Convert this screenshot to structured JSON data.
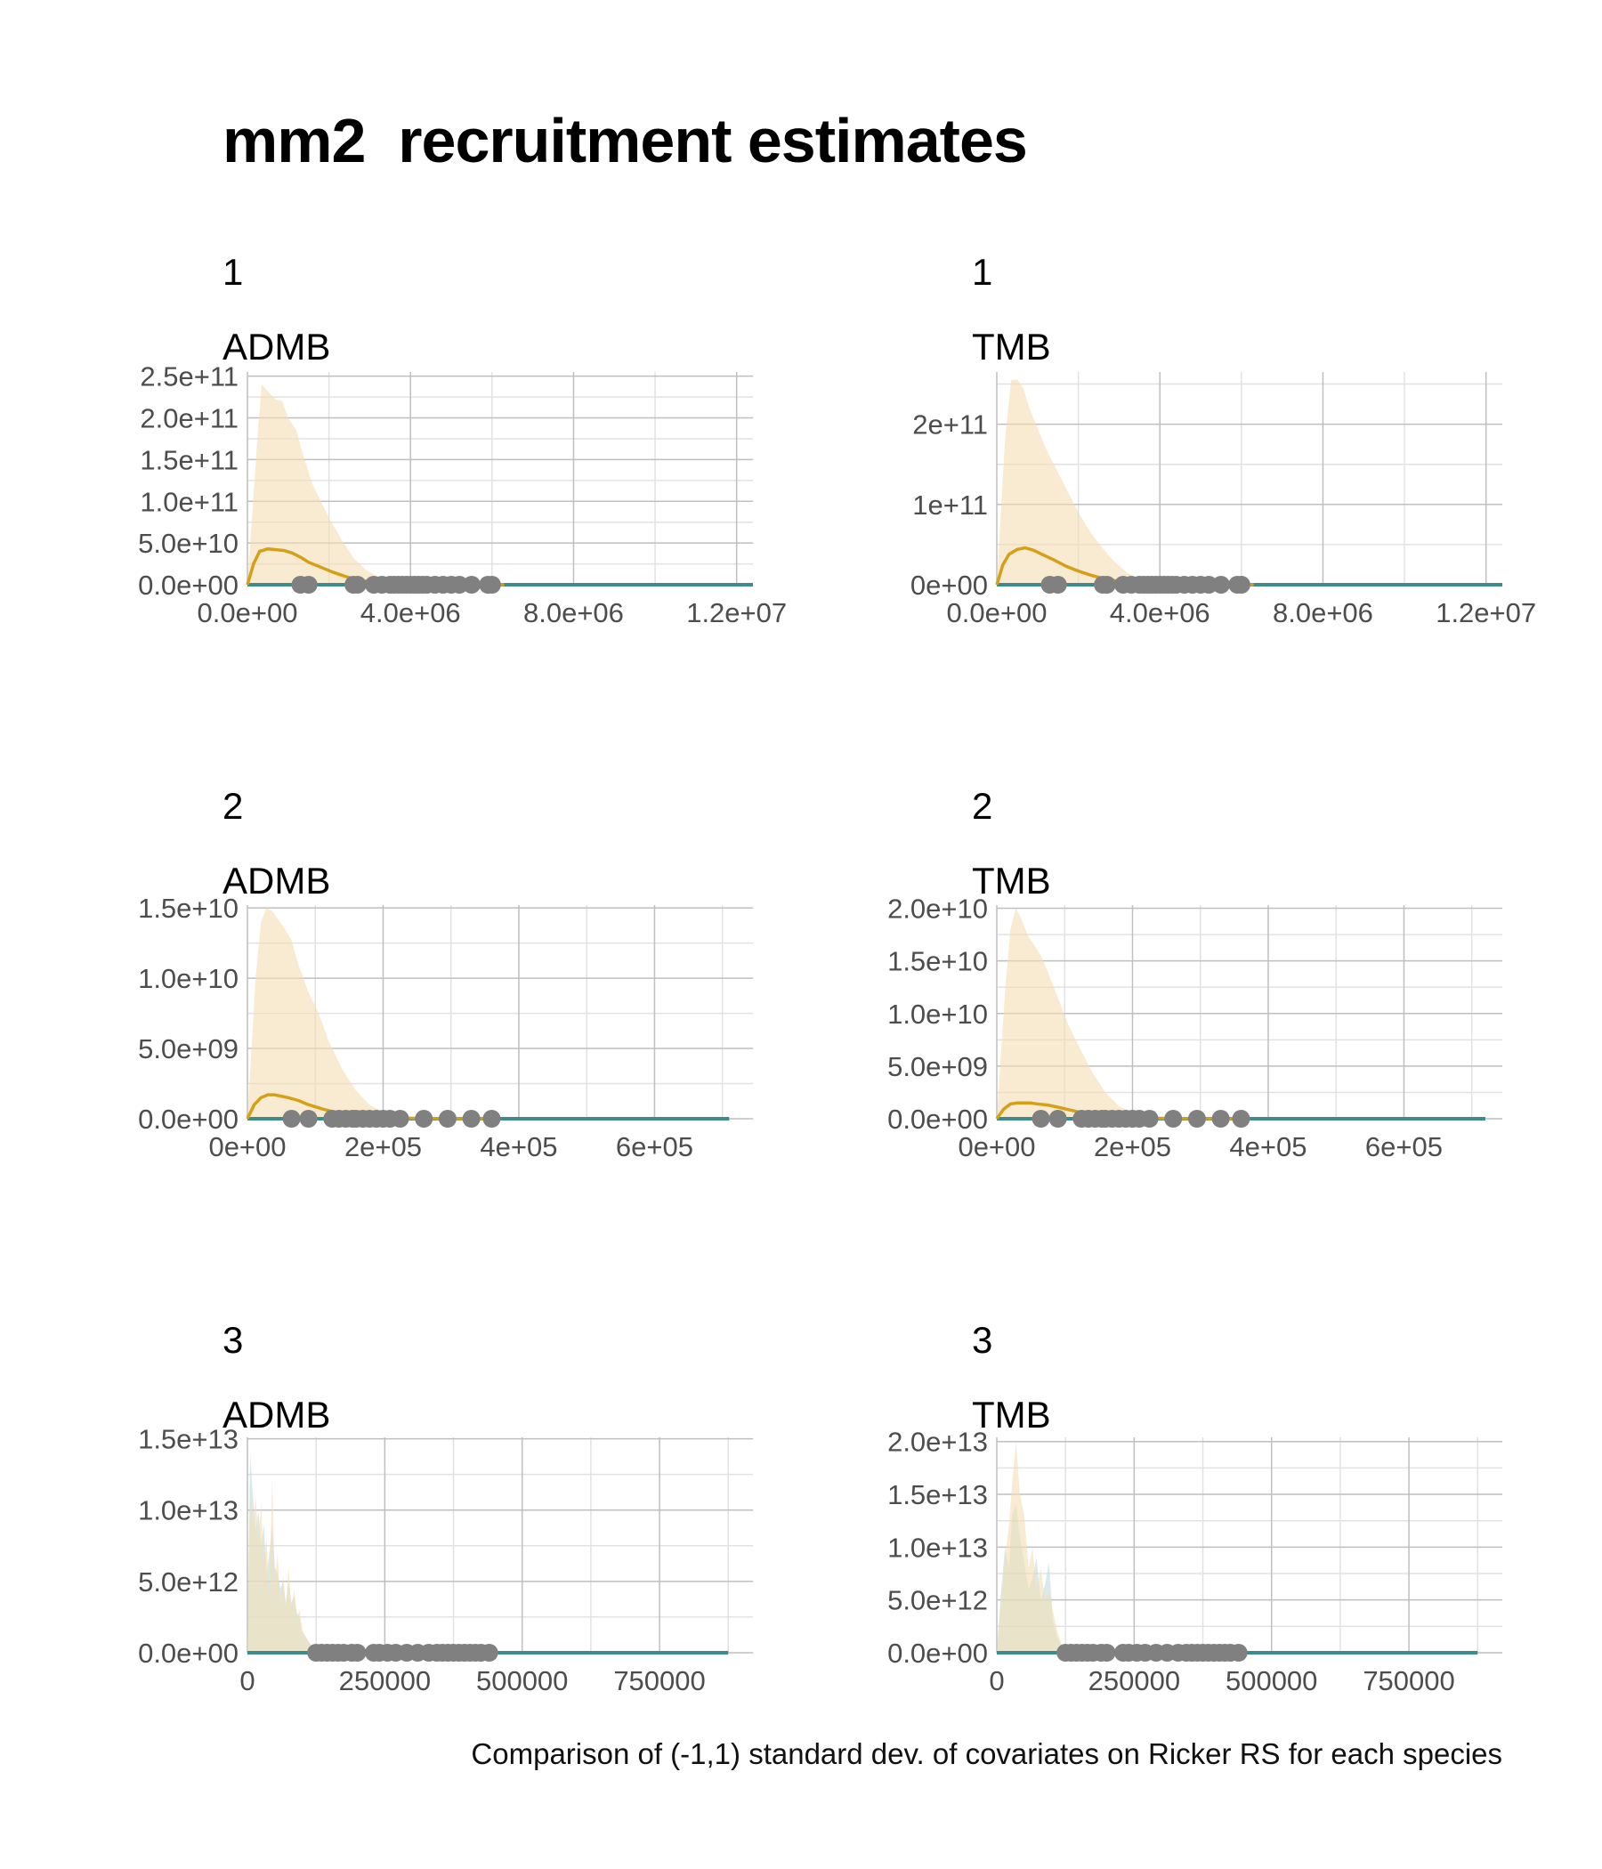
{
  "title": "mm2  recruitment estimates",
  "caption": "Comparison of (-1,1) standard dev. of covariates on Ricker RS for each species",
  "colors": {
    "orange_line": "#D4A017",
    "orange_fill": "#F5DEB3",
    "blue_fill": "#B8D8E0",
    "teal_line": "#3D8C8C",
    "points": "#808080",
    "grid_major": "#bfbfbf",
    "grid_minor": "#e2e2e2"
  },
  "chart_data": [
    {
      "type": "area",
      "species": "1",
      "model": "ADMB",
      "x_ticks": [
        "0.0e+00",
        "4.0e+06",
        "8.0e+06",
        "1.2e+07"
      ],
      "x_tick_values": [
        0,
        4000000,
        8000000,
        12000000
      ],
      "y_ticks": [
        "0.0e+00",
        "5.0e+10",
        "1.0e+11",
        "1.5e+11",
        "2.0e+11",
        "2.5e+11"
      ],
      "y_tick_values": [
        0,
        50000000000,
        100000000000,
        150000000000,
        200000000000,
        250000000000
      ],
      "xlim": [
        0,
        12400000
      ],
      "ylim": [
        0,
        255000000000
      ],
      "upper_band": {
        "x": [
          0,
          250000,
          350000,
          500000,
          700000,
          850000,
          1000000,
          1200000,
          1400000,
          1600000,
          1800000,
          2000000,
          2300000,
          2600000,
          2900000,
          3200000,
          3500000,
          3800000,
          4500000,
          6300000
        ],
        "y": [
          0,
          180000000000,
          240000000000,
          232000000000,
          222000000000,
          220000000000,
          200000000000,
          185000000000,
          150000000000,
          120000000000,
          100000000000,
          80000000000,
          55000000000,
          32000000000,
          18000000000,
          10000000000,
          5000000000,
          2000000000,
          500000000,
          0
        ]
      },
      "lower_band": null,
      "line": {
        "x": [
          0,
          150000,
          300000,
          500000,
          700000,
          900000,
          1100000,
          1300000,
          1500000,
          1800000,
          2100000,
          2400000,
          2700000,
          3000000,
          3400000,
          3800000,
          4500000,
          6300000
        ],
        "y": [
          0,
          25000000000,
          40000000000,
          43000000000,
          42000000000,
          41000000000,
          38000000000,
          33000000000,
          27000000000,
          21000000000,
          15000000000,
          10000000000,
          6000000000,
          3500000000,
          1500000000,
          500000000,
          100000000,
          0
        ]
      },
      "baseline_end": 12400000,
      "points_x": [
        1300000,
        1500000,
        2600000,
        2700000,
        3100000,
        3300000,
        3500000,
        3600000,
        3700000,
        3800000,
        3900000,
        4000000,
        4100000,
        4200000,
        4300000,
        4400000,
        4600000,
        4800000,
        5000000,
        5200000,
        5500000,
        5900000,
        6000000
      ]
    },
    {
      "type": "area",
      "species": "1",
      "model": "TMB",
      "x_ticks": [
        "0.0e+00",
        "4.0e+06",
        "8.0e+06",
        "1.2e+07"
      ],
      "x_tick_values": [
        0,
        4000000,
        8000000,
        12000000
      ],
      "y_ticks": [
        "0e+00",
        "1e+11",
        "2e+11"
      ],
      "y_tick_values": [
        0,
        100000000000,
        200000000000
      ],
      "xlim": [
        0,
        12400000
      ],
      "ylim": [
        0,
        265000000000
      ],
      "upper_band": {
        "x": [
          0,
          200000,
          350000,
          500000,
          650000,
          800000,
          1000000,
          1200000,
          1400000,
          1700000,
          2000000,
          2300000,
          2600000,
          2900000,
          3200000,
          3500000,
          3900000,
          4500000,
          6300000
        ],
        "y": [
          0,
          180000000000,
          255000000000,
          256000000000,
          245000000000,
          220000000000,
          195000000000,
          170000000000,
          150000000000,
          120000000000,
          90000000000,
          65000000000,
          45000000000,
          28000000000,
          15000000000,
          7000000000,
          2000000000,
          500000000,
          0
        ]
      },
      "lower_band": null,
      "line": {
        "x": [
          0,
          150000,
          300000,
          500000,
          700000,
          900000,
          1100000,
          1400000,
          1700000,
          2000000,
          2300000,
          2600000,
          2900000,
          3200000,
          3600000,
          4000000,
          4600000,
          6300000
        ],
        "y": [
          0,
          25000000000,
          38000000000,
          44000000000,
          46000000000,
          43000000000,
          38000000000,
          31000000000,
          23000000000,
          17000000000,
          12000000000,
          8000000000,
          5000000000,
          3000000000,
          1500000000,
          500000000,
          100000000,
          0
        ]
      },
      "baseline_end": 12400000,
      "points_x": [
        1300000,
        1500000,
        2600000,
        2700000,
        3100000,
        3300000,
        3500000,
        3600000,
        3700000,
        3800000,
        3900000,
        4000000,
        4100000,
        4200000,
        4300000,
        4400000,
        4600000,
        4800000,
        5000000,
        5200000,
        5500000,
        5900000,
        6000000
      ]
    },
    {
      "type": "area",
      "species": "2",
      "model": "ADMB",
      "x_ticks": [
        "0e+00",
        "2e+05",
        "4e+05",
        "6e+05"
      ],
      "x_tick_values": [
        0,
        200000,
        400000,
        600000
      ],
      "y_ticks": [
        "0.0e+00",
        "5.0e+09",
        "1.0e+10",
        "1.5e+10"
      ],
      "y_tick_values": [
        0,
        5000000000,
        10000000000,
        15000000000
      ],
      "xlim": [
        0,
        745000
      ],
      "ylim": [
        0,
        15200000000
      ],
      "upper_band": {
        "x": [
          0,
          12000,
          20000,
          28000,
          36000,
          45000,
          55000,
          65000,
          75000,
          90000,
          105000,
          120000,
          140000,
          160000,
          180000,
          200000,
          230000,
          260000,
          360000
        ],
        "y": [
          0,
          10000000000,
          14000000000,
          15000000000,
          14800000000,
          14200000000,
          13500000000,
          12700000000,
          11000000000,
          9000000000,
          7500000000,
          5500000000,
          3500000000,
          2000000000,
          1000000000,
          500000000,
          200000000,
          50000000,
          0
        ]
      },
      "lower_band": null,
      "line": {
        "x": [
          0,
          10000,
          20000,
          30000,
          40000,
          50000,
          60000,
          75000,
          90000,
          110000,
          130000,
          150000,
          180000,
          220000,
          260000,
          360000
        ],
        "y": [
          0,
          1000000000,
          1500000000,
          1700000000,
          1700000000,
          1600000000,
          1500000000,
          1300000000,
          1000000000,
          700000000,
          450000000,
          250000000,
          120000000,
          50000000,
          20000000,
          0
        ]
      },
      "baseline_end": 710000,
      "points_x": [
        65000,
        90000,
        125000,
        135000,
        145000,
        155000,
        160000,
        170000,
        180000,
        190000,
        200000,
        210000,
        225000,
        260000,
        295000,
        330000,
        360000
      ]
    },
    {
      "type": "area",
      "species": "2",
      "model": "TMB",
      "x_ticks": [
        "0e+00",
        "2e+05",
        "4e+05",
        "6e+05"
      ],
      "x_tick_values": [
        0,
        200000,
        400000,
        600000
      ],
      "y_ticks": [
        "0.0e+00",
        "5.0e+09",
        "1.0e+10",
        "1.5e+10",
        "2.0e+10"
      ],
      "y_tick_values": [
        0,
        5000000000,
        10000000000,
        15000000000,
        20000000000
      ],
      "xlim": [
        0,
        745000
      ],
      "ylim": [
        0,
        20300000000
      ],
      "upper_band": {
        "x": [
          0,
          12000,
          20000,
          28000,
          36000,
          45000,
          55000,
          65000,
          75000,
          90000,
          105000,
          120000,
          140000,
          160000,
          180000,
          200000,
          230000,
          260000,
          360000
        ],
        "y": [
          0,
          12000000000,
          18000000000,
          20000000000,
          19000000000,
          17500000000,
          16500000000,
          15500000000,
          14000000000,
          11500000000,
          9000000000,
          7000000000,
          4500000000,
          2500000000,
          1200000000,
          600000000,
          200000000,
          50000000,
          0
        ]
      },
      "lower_band": null,
      "line": {
        "x": [
          0,
          10000,
          20000,
          30000,
          40000,
          50000,
          60000,
          75000,
          90000,
          110000,
          130000,
          150000,
          180000,
          220000,
          260000,
          360000
        ],
        "y": [
          0,
          900000000,
          1400000000,
          1500000000,
          1500000000,
          1500000000,
          1400000000,
          1300000000,
          1100000000,
          800000000,
          500000000,
          300000000,
          150000000,
          60000000,
          20000000,
          0
        ]
      },
      "baseline_end": 720000,
      "points_x": [
        65000,
        90000,
        125000,
        135000,
        145000,
        155000,
        160000,
        170000,
        180000,
        190000,
        200000,
        210000,
        225000,
        260000,
        295000,
        330000,
        360000
      ]
    },
    {
      "type": "area",
      "species": "3",
      "model": "ADMB",
      "x_ticks": [
        "0",
        "250000",
        "500000",
        "750000"
      ],
      "x_tick_values": [
        0,
        250000,
        500000,
        750000
      ],
      "y_ticks": [
        "0.0e+00",
        "5.0e+12",
        "1.0e+13",
        "1.5e+13"
      ],
      "y_tick_values": [
        0,
        5000000000000,
        10000000000000,
        15000000000000
      ],
      "xlim": [
        0,
        920000
      ],
      "ylim": [
        0,
        15100000000000
      ],
      "upper_band": {
        "x": [
          0,
          5000,
          10000,
          15000,
          20000,
          25000,
          30000,
          35000,
          40000,
          45000,
          50000,
          55000,
          60000,
          65000,
          70000,
          75000,
          80000,
          85000,
          90000,
          95000,
          100000,
          110000,
          120000,
          130000
        ],
        "y": [
          0,
          12000000000000,
          9000000000000,
          11000000000000,
          8000000000000,
          10500000000000,
          6500000000000,
          8000000000000,
          4000000000000,
          12300000000000,
          5000000000000,
          7000000000000,
          3500000000000,
          5500000000000,
          3000000000000,
          6000000000000,
          3000000000000,
          4500000000000,
          2500000000000,
          3000000000000,
          1500000000000,
          800000000000,
          300000000000,
          0
        ]
      },
      "lower_band": {
        "x": [
          0,
          5000,
          10000,
          15000,
          20000,
          25000,
          30000,
          35000,
          40000,
          45000,
          50000,
          55000,
          60000,
          65000,
          70000,
          75000,
          80000,
          85000,
          90000,
          95000,
          100000,
          110000,
          120000,
          130000
        ],
        "y": [
          0,
          14000000000000,
          11000000000000,
          8500000000000,
          10000000000000,
          7500000000000,
          9000000000000,
          5500000000000,
          7000000000000,
          9000000000000,
          6000000000000,
          5500000000000,
          4500000000000,
          5000000000000,
          3500000000000,
          5000000000000,
          3500000000000,
          4000000000000,
          2800000000000,
          2500000000000,
          1500000000000,
          900000000000,
          300000000000,
          0
        ]
      },
      "line": null,
      "baseline_end": 875000,
      "points_x": [
        125000,
        135000,
        145000,
        155000,
        165000,
        175000,
        190000,
        200000,
        230000,
        240000,
        255000,
        270000,
        290000,
        310000,
        330000,
        345000,
        355000,
        365000,
        375000,
        385000,
        395000,
        405000,
        415000,
        425000,
        440000
      ]
    },
    {
      "type": "area",
      "species": "3",
      "model": "TMB",
      "x_ticks": [
        "0",
        "250000",
        "500000",
        "750000"
      ],
      "x_tick_values": [
        0,
        250000,
        500000,
        750000
      ],
      "y_ticks": [
        "0.0e+00",
        "5.0e+12",
        "1.0e+13",
        "1.5e+13",
        "2.0e+13"
      ],
      "y_tick_values": [
        0,
        5000000000000,
        10000000000000,
        15000000000000,
        20000000000000
      ],
      "xlim": [
        0,
        920000
      ],
      "ylim": [
        0,
        20400000000000
      ],
      "upper_band": {
        "x": [
          0,
          8000,
          15000,
          22000,
          28000,
          35000,
          42000,
          50000,
          58000,
          65000,
          72000,
          80000,
          88000,
          95000,
          102000,
          110000,
          120000,
          130000
        ],
        "y": [
          0,
          5000000000000,
          9000000000000,
          12000000000000,
          16000000000000,
          20000000000000,
          15000000000000,
          13000000000000,
          8000000000000,
          10000000000000,
          6000000000000,
          8000000000000,
          5000000000000,
          6000000000000,
          4000000000000,
          2000000000000,
          500000000000,
          0
        ]
      },
      "lower_band": {
        "x": [
          0,
          8000,
          15000,
          22000,
          28000,
          35000,
          42000,
          50000,
          58000,
          65000,
          72000,
          80000,
          88000,
          95000,
          102000,
          110000,
          120000,
          130000
        ],
        "y": [
          0,
          6000000000000,
          10000000000000,
          8000000000000,
          13000000000000,
          14000000000000,
          11000000000000,
          8500000000000,
          6000000000000,
          7000000000000,
          9000000000000,
          5000000000000,
          6500000000000,
          8500000000000,
          3000000000000,
          1500000000000,
          400000000000,
          0
        ]
      },
      "line": null,
      "baseline_end": 875000,
      "points_x": [
        125000,
        135000,
        145000,
        155000,
        165000,
        175000,
        190000,
        200000,
        230000,
        240000,
        255000,
        270000,
        290000,
        310000,
        330000,
        345000,
        355000,
        365000,
        375000,
        385000,
        395000,
        405000,
        415000,
        425000,
        440000
      ]
    }
  ]
}
